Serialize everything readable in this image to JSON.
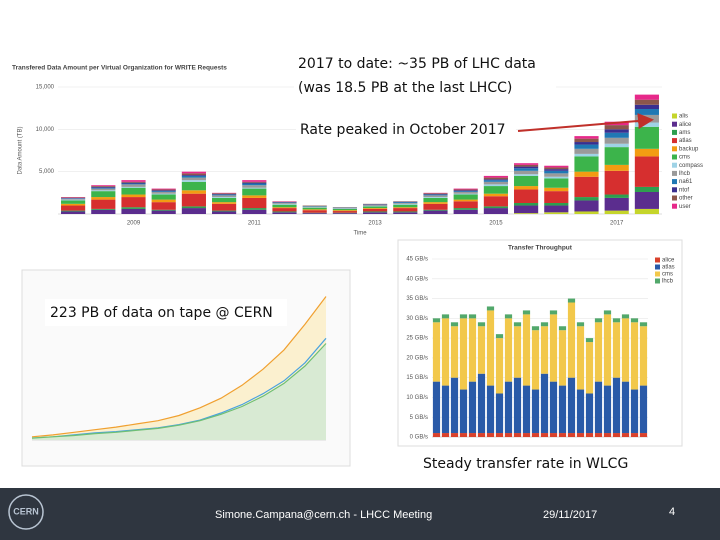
{
  "slide": {
    "note_volume_1": "2017 to date: ~35 PB of LHC data",
    "note_volume_2": "(was 18.5 PB at the last LHCC)",
    "note_peak": "Rate peaked in October 2017",
    "note_tape": "223 PB of data on tape @ CERN",
    "note_rate": "Steady transfer rate in WLCG",
    "footer": {
      "logo": "CERN",
      "author": "Simone.Campana@cern.ch - LHCC Meeting",
      "date": "29/11/2017",
      "page": "4"
    }
  },
  "chart_data": [
    {
      "type": "bar",
      "stacked": true,
      "title": "Transfered Data Amount per Virtual Organization for WRITE Requests",
      "xlabel": "Time",
      "ylabel": "Data Amount (TB)",
      "categories": [
        null,
        null,
        "2009",
        null,
        null,
        null,
        "2011",
        null,
        null,
        null,
        "2013",
        null,
        null,
        null,
        "2015",
        null,
        null,
        null,
        "2017",
        null
      ],
      "series": [
        {
          "name": "alis",
          "color": "#c5d52b",
          "values": [
            0,
            0,
            0,
            0,
            0,
            0,
            0,
            0,
            0,
            0,
            0,
            0,
            0,
            0,
            0,
            100,
            200,
            300,
            400,
            600
          ]
        },
        {
          "name": "alice",
          "color": "#5b2d8e",
          "values": [
            300,
            500,
            600,
            400,
            700,
            300,
            500,
            200,
            100,
            100,
            200,
            200,
            400,
            500,
            700,
            900,
            800,
            1300,
            1500,
            2000
          ]
        },
        {
          "name": "ams",
          "color": "#2e9e4f",
          "values": [
            100,
            100,
            200,
            100,
            200,
            100,
            200,
            100,
            50,
            50,
            100,
            100,
            100,
            200,
            200,
            300,
            300,
            400,
            400,
            600
          ]
        },
        {
          "name": "atlas",
          "color": "#d62f2f",
          "values": [
            600,
            1100,
            1200,
            900,
            1500,
            800,
            1200,
            400,
            300,
            200,
            300,
            400,
            700,
            800,
            1200,
            1600,
            1400,
            2400,
            2800,
            3600
          ]
        },
        {
          "name": "backup",
          "color": "#f39c12",
          "values": [
            200,
            300,
            300,
            300,
            400,
            200,
            300,
            100,
            100,
            100,
            100,
            100,
            200,
            200,
            300,
            400,
            400,
            600,
            700,
            900
          ]
        },
        {
          "name": "cms",
          "color": "#3cb44b",
          "values": [
            400,
            700,
            800,
            600,
            1000,
            500,
            800,
            300,
            200,
            150,
            200,
            300,
            500,
            600,
            900,
            1200,
            1100,
            1800,
            2100,
            2600
          ]
        },
        {
          "name": "compass",
          "color": "#9fd3e6",
          "values": [
            100,
            100,
            100,
            100,
            200,
            100,
            100,
            100,
            50,
            50,
            50,
            100,
            100,
            100,
            200,
            200,
            200,
            300,
            400,
            500
          ]
        },
        {
          "name": "lhcb",
          "color": "#9a9a9a",
          "values": [
            100,
            200,
            300,
            200,
            300,
            200,
            300,
            100,
            100,
            50,
            100,
            100,
            200,
            200,
            300,
            400,
            400,
            600,
            700,
            900
          ]
        },
        {
          "name": "na61",
          "color": "#1f78b4",
          "values": [
            50,
            100,
            100,
            100,
            200,
            100,
            200,
            50,
            50,
            50,
            50,
            100,
            100,
            100,
            200,
            300,
            300,
            500,
            600,
            700
          ]
        },
        {
          "name": "ntof",
          "color": "#3a2f8f",
          "values": [
            50,
            100,
            100,
            100,
            100,
            50,
            100,
            50,
            0,
            0,
            50,
            50,
            50,
            100,
            100,
            200,
            200,
            300,
            400,
            500
          ]
        },
        {
          "name": "other",
          "color": "#8c564b",
          "values": [
            50,
            100,
            100,
            100,
            200,
            100,
            100,
            50,
            50,
            50,
            50,
            50,
            100,
            100,
            200,
            200,
            200,
            400,
            500,
            600
          ]
        },
        {
          "name": "user",
          "color": "#e7298a",
          "values": [
            50,
            100,
            200,
            100,
            200,
            50,
            200,
            50,
            0,
            0,
            0,
            0,
            50,
            100,
            200,
            200,
            200,
            300,
            400,
            600
          ]
        }
      ],
      "ylim": [
        0,
        15000
      ],
      "yticks": [
        {
          "value": 5000,
          "label": "5,000"
        },
        {
          "value": 10000,
          "label": "10,000"
        },
        {
          "value": 15000,
          "label": "15,000"
        }
      ],
      "grid": true,
      "legend": "right"
    },
    {
      "type": "bar",
      "stacked": true,
      "title": "Transfer Throughput",
      "categories": [
        null,
        null,
        null,
        null,
        null,
        null,
        null,
        null,
        null,
        null,
        null,
        null,
        null,
        null,
        null,
        null,
        null,
        null,
        null,
        null,
        null,
        null,
        null,
        null
      ],
      "series": [
        {
          "name": "alice",
          "color": "#d9412b",
          "values": [
            1,
            1,
            1,
            1,
            1,
            1,
            1,
            1,
            1,
            1,
            1,
            1,
            1,
            1,
            1,
            1,
            1,
            1,
            1,
            1,
            1,
            1,
            1,
            1
          ]
        },
        {
          "name": "atlas",
          "color": "#2a5aa8",
          "values": [
            13,
            12,
            14,
            11,
            13,
            15,
            12,
            10,
            13,
            14,
            12,
            11,
            15,
            13,
            12,
            14,
            11,
            10,
            13,
            12,
            14,
            13,
            11,
            12
          ]
        },
        {
          "name": "cms",
          "color": "#f2c84b",
          "values": [
            15,
            17,
            13,
            18,
            16,
            12,
            19,
            14,
            16,
            13,
            18,
            15,
            12,
            17,
            14,
            19,
            16,
            13,
            15,
            18,
            14,
            16,
            17,
            15
          ]
        },
        {
          "name": "lhcb",
          "color": "#52a86b",
          "values": [
            1,
            1,
            1,
            1,
            1,
            1,
            1,
            1,
            1,
            1,
            1,
            1,
            1,
            1,
            1,
            1,
            1,
            1,
            1,
            1,
            1,
            1,
            1,
            1
          ]
        }
      ],
      "ylim": [
        0,
        45
      ],
      "yticks": [
        {
          "value": 0,
          "label": "0 GB/s"
        },
        {
          "value": 5,
          "label": "5 GB/s"
        },
        {
          "value": 10,
          "label": "10 GB/s"
        },
        {
          "value": 15,
          "label": "15 GB/s"
        },
        {
          "value": 20,
          "label": "20 GB/s"
        },
        {
          "value": 25,
          "label": "25 GB/s"
        },
        {
          "value": 30,
          "label": "30 GB/s"
        },
        {
          "value": 35,
          "label": "35 GB/s"
        },
        {
          "value": 40,
          "label": "40 GB/s"
        },
        {
          "value": 45,
          "label": "45 GB/s"
        }
      ],
      "grid": true,
      "legend": "right"
    },
    {
      "type": "area",
      "categories": [
        null,
        null,
        null,
        null,
        null,
        null,
        null,
        null,
        null,
        null,
        null,
        null,
        null,
        null,
        null
      ],
      "series": [
        {
          "color": "#f0a030",
          "fill": "#fbf0cf",
          "values": [
            5,
            8,
            12,
            16,
            20,
            25,
            30,
            38,
            50,
            65,
            85,
            110,
            140,
            180,
            223
          ]
        },
        {
          "color": "#4aa3df",
          "fill": "none",
          "values": [
            3,
            5,
            8,
            11,
            13,
            16,
            19,
            24,
            31,
            42,
            55,
            72,
            92,
            120,
            158
          ]
        },
        {
          "color": "#6fbf73",
          "fill": "#d8ead3",
          "values": [
            3,
            5,
            7,
            10,
            12,
            15,
            18,
            23,
            30,
            40,
            52,
            68,
            88,
            115,
            150
          ]
        }
      ],
      "ylim": [
        0,
        230
      ],
      "grid": true
    }
  ]
}
